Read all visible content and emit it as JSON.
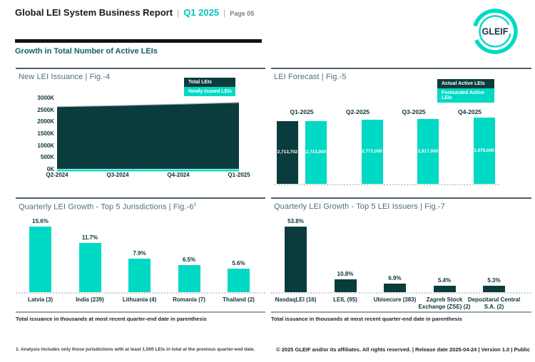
{
  "header": {
    "title": "Global LEI System Business Report",
    "separator": "|",
    "period": "Q1 2025",
    "page_label": "Page 05",
    "logo_text": "GLEIF"
  },
  "section_title": "Growth in Total Number of Active LEIs",
  "colors": {
    "teal": "#00d9c4",
    "dark_teal": "#0b3c3d",
    "header_accent": "#00c4bc",
    "area_top_stroke": "#a8b0b2"
  },
  "chart_data": [
    {
      "id": "fig4",
      "type": "area",
      "title": "New LEI Issuance | Fig.-4",
      "x": [
        "Q2-2024",
        "Q3-2024",
        "Q4-2024",
        "Q1-2025"
      ],
      "series": [
        {
          "name": "Total LEIs",
          "color": "dark_teal",
          "values_thousands": [
            2550,
            2600,
            2655,
            2714
          ]
        },
        {
          "name": "Newly Issued LEIs",
          "color": "teal",
          "values_thousands": [
            65,
            65,
            70,
            80
          ]
        }
      ],
      "y_ticks": [
        "3000K",
        "2500K",
        "2000K",
        "1500K",
        "1000K",
        "500K",
        "0K"
      ],
      "ylim_thousands": [
        0,
        3000
      ],
      "legend_position": "top-right",
      "grid": false
    },
    {
      "id": "fig5",
      "type": "bar",
      "title": "LEI Forecast | Fig.-5",
      "categories": [
        "Q1-2025",
        "Q2-2025",
        "Q3-2025",
        "Q4-2025"
      ],
      "series": [
        {
          "name": "Actual Active LEIs",
          "color": "dark_teal",
          "values": [
            2713702,
            null,
            null,
            null
          ],
          "value_labels": [
            "2,713,702",
            null,
            null,
            null
          ]
        },
        {
          "name": "Forecasted Active LEIs",
          "color": "teal",
          "values": [
            2713000,
            2771000,
            2817000,
            2878000
          ],
          "value_labels": [
            "2,713,000",
            "2,771,000",
            "2,817,000",
            "2,878,000"
          ]
        }
      ],
      "category_labels_position": "top",
      "legend_position": "top-right",
      "baseline_style": "dotted"
    },
    {
      "id": "fig6",
      "type": "bar",
      "title": "Quarterly LEI Growth - Top 5 Jurisdictions | Fig.-6",
      "title_superscript": "1",
      "categories": [
        "Latvia (3)",
        "India (239)",
        "Lithuania (4)",
        "Romania (7)",
        "Thailand (2)"
      ],
      "values_percent": [
        15.6,
        11.7,
        7.9,
        6.5,
        5.6
      ],
      "value_labels": [
        "15.6%",
        "11.7%",
        "7.9%",
        "6.5%",
        "5.6%"
      ],
      "bar_color": "teal",
      "baseline_style": "dotted",
      "footnote": "Total issuance in thousands at most recent quarter-end date in parenthesis"
    },
    {
      "id": "fig7",
      "type": "bar",
      "title": "Quarterly LEI Growth - Top 5 LEI Issuers | Fig.-7",
      "categories": [
        "NasdaqLEI (16)",
        "LEIL (95)",
        "Ubisecure (383)",
        "Zagreb Stock Exchange (ZSE) (2)",
        "Depozitarul Central S.A. (2)"
      ],
      "values_percent": [
        53.8,
        10.8,
        6.9,
        5.4,
        5.3
      ],
      "value_labels": [
        "53.8%",
        "10.8%",
        "6.9%",
        "5.4%",
        "5.3%"
      ],
      "bar_color": "dark_teal",
      "baseline_style": "dotted",
      "footnote": "Total issuance in thousands at most recent quarter-end date in parenthesis"
    }
  ],
  "footer": {
    "left_note": "1. Analysis includes only those jurisdictions with at least 1,000 LEIs in total at the previous quarter-end date.",
    "right_note": "© 2025 GLEIF and/or its affiliates. All rights reserved. | Release date 2025-04-24 | Version 1.0 | Public"
  }
}
